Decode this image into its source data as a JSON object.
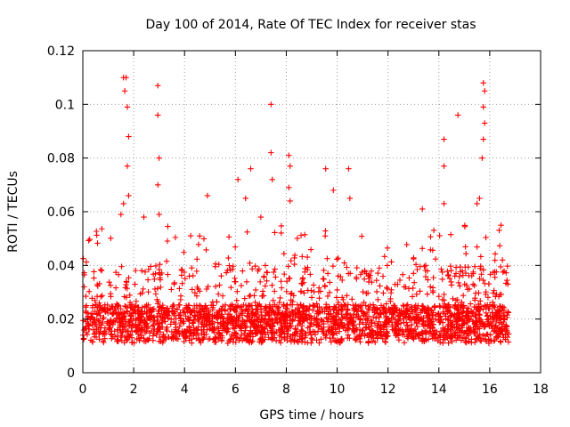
{
  "chart_data": {
    "type": "scatter",
    "title": "Day 100 of 2014, Rate Of TEC Index for receiver stas",
    "xlabel": "GPS time / hours",
    "ylabel": "ROTI / TECUs",
    "xlim": [
      0,
      18
    ],
    "ylim": [
      0,
      0.12
    ],
    "grid": true,
    "marker": "+",
    "x_ticks": [
      0,
      2,
      4,
      6,
      8,
      10,
      12,
      14,
      16,
      18
    ],
    "y_ticks": [
      0,
      0.02,
      0.04,
      0.06,
      0.08,
      0.1,
      0.12
    ],
    "x_tick_labels": [
      "0",
      "2",
      "4",
      "6",
      "8",
      "10",
      "12",
      "14",
      "16",
      "18"
    ],
    "y_tick_labels": [
      "0",
      "0.02",
      "0.04",
      "0.06",
      "0.08",
      "0.1",
      "0.12"
    ],
    "series": [
      {
        "name": "stas",
        "color": "#ff0000",
        "x_range": [
          0,
          16.75
        ],
        "typical_band": [
          0.008,
          0.025
        ],
        "highlights": [
          {
            "x": 1.6,
            "y": 0.11
          },
          {
            "x": 1.65,
            "y": 0.105
          },
          {
            "x": 1.7,
            "y": 0.11
          },
          {
            "x": 1.75,
            "y": 0.099
          },
          {
            "x": 1.8,
            "y": 0.088
          },
          {
            "x": 1.75,
            "y": 0.077
          },
          {
            "x": 1.6,
            "y": 0.063
          },
          {
            "x": 1.5,
            "y": 0.059
          },
          {
            "x": 1.8,
            "y": 0.066
          },
          {
            "x": 2.95,
            "y": 0.107
          },
          {
            "x": 2.95,
            "y": 0.096
          },
          {
            "x": 3.0,
            "y": 0.08
          },
          {
            "x": 2.95,
            "y": 0.07
          },
          {
            "x": 3.0,
            "y": 0.059
          },
          {
            "x": 2.4,
            "y": 0.058
          },
          {
            "x": 4.9,
            "y": 0.066
          },
          {
            "x": 6.1,
            "y": 0.072
          },
          {
            "x": 6.6,
            "y": 0.076
          },
          {
            "x": 6.4,
            "y": 0.065
          },
          {
            "x": 7.0,
            "y": 0.058
          },
          {
            "x": 7.4,
            "y": 0.1
          },
          {
            "x": 7.4,
            "y": 0.082
          },
          {
            "x": 7.45,
            "y": 0.072
          },
          {
            "x": 8.1,
            "y": 0.081
          },
          {
            "x": 8.15,
            "y": 0.077
          },
          {
            "x": 8.1,
            "y": 0.069
          },
          {
            "x": 8.15,
            "y": 0.064
          },
          {
            "x": 9.55,
            "y": 0.076
          },
          {
            "x": 9.85,
            "y": 0.068
          },
          {
            "x": 10.45,
            "y": 0.076
          },
          {
            "x": 10.5,
            "y": 0.065
          },
          {
            "x": 13.35,
            "y": 0.061
          },
          {
            "x": 14.2,
            "y": 0.087
          },
          {
            "x": 14.2,
            "y": 0.077
          },
          {
            "x": 14.2,
            "y": 0.063
          },
          {
            "x": 14.75,
            "y": 0.096
          },
          {
            "x": 15.75,
            "y": 0.108
          },
          {
            "x": 15.8,
            "y": 0.105
          },
          {
            "x": 15.75,
            "y": 0.099
          },
          {
            "x": 15.8,
            "y": 0.093
          },
          {
            "x": 15.7,
            "y": 0.08
          },
          {
            "x": 15.75,
            "y": 0.087
          },
          {
            "x": 15.6,
            "y": 0.065
          },
          {
            "x": 15.5,
            "y": 0.063
          },
          {
            "x": 16.5,
            "y": 0.042
          }
        ]
      }
    ]
  }
}
